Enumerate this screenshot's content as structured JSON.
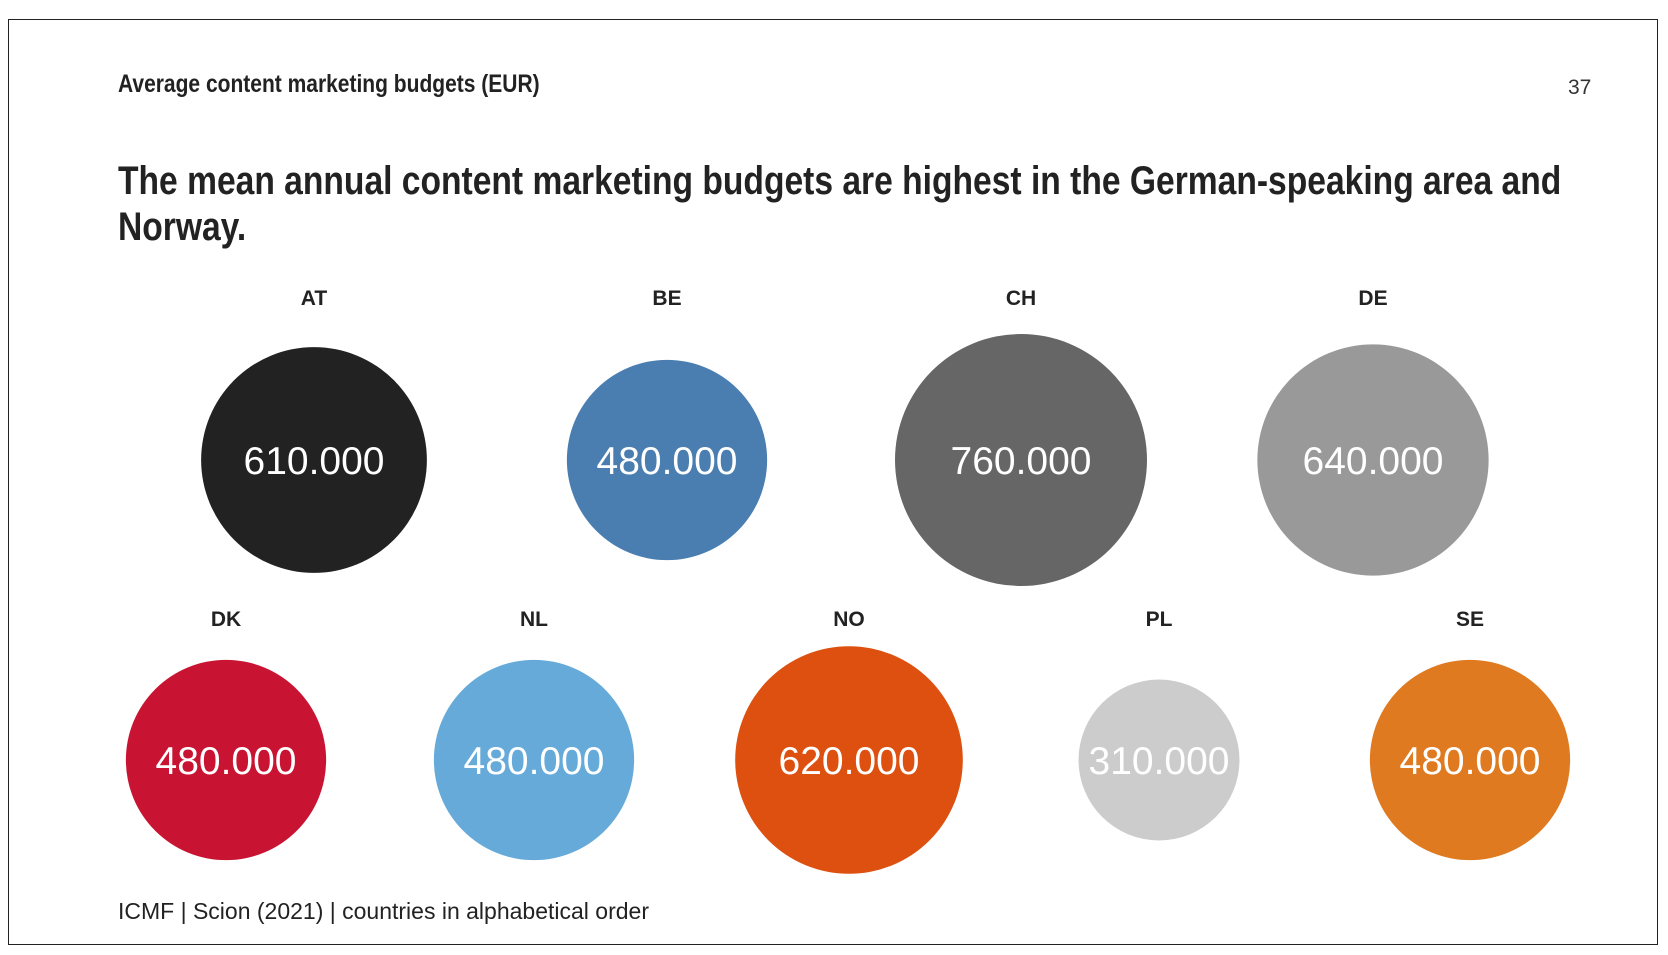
{
  "header": {
    "section_title": "Average content marketing budgets (EUR)",
    "page_number": "37"
  },
  "headline": "The mean annual content marketing budgets are highest in the German-speaking area and Norway.",
  "footer": "ICMF | Scion (2021) | countries in alphabetical order",
  "chart_data": {
    "type": "bubble",
    "title": "Average content marketing budgets (EUR)",
    "unit": "EUR",
    "categories": [
      "AT",
      "BE",
      "CH",
      "DE",
      "DK",
      "NL",
      "NO",
      "PL",
      "SE"
    ],
    "values": [
      610000,
      480000,
      760000,
      640000,
      480000,
      480000,
      620000,
      310000,
      480000
    ],
    "value_labels": [
      "610.000",
      "480.000",
      "760.000",
      "640.000",
      "480.000",
      "480.000",
      "620.000",
      "310.000",
      "480.000"
    ],
    "colors": [
      "#222222",
      "#4a7eb0",
      "#666666",
      "#999999",
      "#c81432",
      "#66aad9",
      "#dd500f",
      "#cccccc",
      "#df7a20"
    ]
  }
}
